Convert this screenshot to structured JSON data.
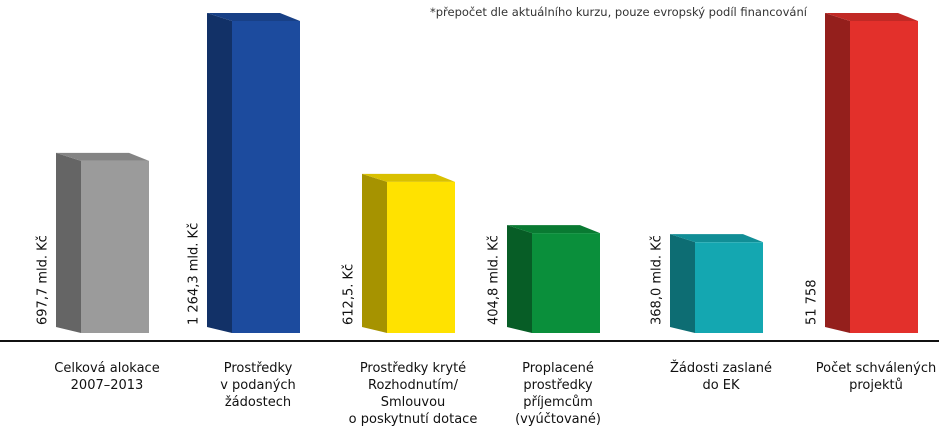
{
  "chart_data": {
    "type": "bar3d",
    "note": "*přepočet dle aktuálního kurzu, pouze evropský podíl financování",
    "categories": [
      [
        "Celková alokace",
        "2007–2013"
      ],
      [
        "Prostředky",
        "v podaných",
        "žádostech"
      ],
      [
        "Prostředky kryté",
        "Rozhodnutím/",
        "Smlouvou",
        "o poskytnutí dotace"
      ],
      [
        "Proplacené",
        "prostředky",
        "příjemcům",
        "(vyúčtované)"
      ],
      [
        "Žádosti zaslané",
        "do EK"
      ],
      [
        "Počet schválených",
        "projektů"
      ]
    ],
    "series": [
      {
        "values": [
          697.7,
          1264.3,
          612.5,
          404.8,
          368.0,
          null
        ],
        "value_labels": [
          "697,7 mld. Kč",
          "1 264,3 mld. Kč",
          "612,5. Kč",
          "404,8 mld. Kč",
          "368,0 mld. Kč",
          null
        ]
      },
      {
        "axis": "y2",
        "values": [
          null,
          null,
          null,
          null,
          null,
          51758
        ],
        "value_labels": [
          null,
          null,
          null,
          null,
          null,
          "51 758"
        ]
      }
    ],
    "colors": [
      "#9b9b9b",
      "#1c4b9e",
      "#ffe200",
      "#0a8f3b",
      "#14a7b1",
      "#e3302b"
    ]
  }
}
